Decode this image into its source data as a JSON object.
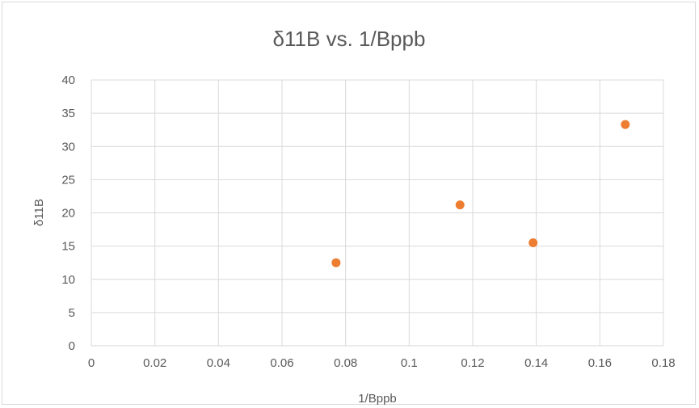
{
  "chart_data": {
    "type": "scatter",
    "title": "δ11B vs. 1/Bppb",
    "xlabel": "1/Bppb",
    "ylabel": "δ11B",
    "xlim": [
      0,
      0.18
    ],
    "ylim": [
      0,
      40
    ],
    "x_ticks": [
      "0",
      "0.02",
      "0.04",
      "0.06",
      "0.08",
      "0.1",
      "0.12",
      "0.14",
      "0.16",
      "0.18"
    ],
    "y_ticks": [
      "0",
      "5",
      "10",
      "15",
      "20",
      "25",
      "30",
      "35",
      "40"
    ],
    "grid": true,
    "marker_color": "#ED7D31",
    "points": [
      {
        "x": 0.077,
        "y": 12.5
      },
      {
        "x": 0.116,
        "y": 21.2
      },
      {
        "x": 0.139,
        "y": 15.5
      },
      {
        "x": 0.168,
        "y": 33.3
      }
    ]
  }
}
